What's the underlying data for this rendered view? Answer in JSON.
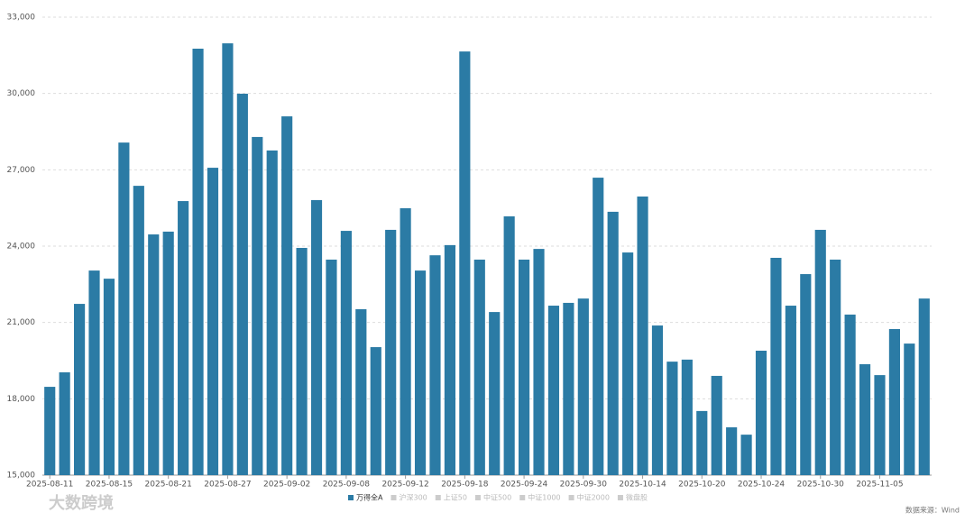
{
  "chart_data": {
    "type": "bar",
    "categories": [
      "2025-08-11",
      null,
      null,
      null,
      "2025-08-15",
      null,
      null,
      null,
      "2025-08-21",
      null,
      null,
      null,
      "2025-08-27",
      null,
      null,
      null,
      "2025-09-02",
      null,
      null,
      null,
      "2025-09-08",
      null,
      null,
      null,
      "2025-09-12",
      null,
      null,
      null,
      "2025-09-18",
      null,
      null,
      null,
      "2025-09-24",
      null,
      null,
      null,
      "2025-09-30",
      null,
      null,
      null,
      "2025-10-14",
      null,
      null,
      null,
      "2025-10-20",
      null,
      null,
      null,
      "2025-10-24",
      null,
      null,
      null,
      "2025-10-30",
      null,
      null,
      null,
      "2025-11-05",
      null,
      null,
      null
    ],
    "series": [
      {
        "name": "万得全A",
        "color": "#2b7ba5",
        "values": [
          18470,
          19040,
          21730,
          23040,
          22720,
          28070,
          26370,
          24460,
          24570,
          25770,
          31760,
          27080,
          31970,
          29990,
          28290,
          27760,
          29100,
          23930,
          25810,
          23470,
          24600,
          21520,
          20030,
          24640,
          25490,
          23040,
          23640,
          24040,
          31650,
          23470,
          21410,
          25170,
          23470,
          23890,
          21660,
          21770,
          21940,
          26690,
          25350,
          23750,
          25950,
          20880,
          19460,
          19540,
          17520,
          18900,
          16880,
          16590,
          19890,
          23540,
          21660,
          22900,
          24640,
          23470,
          21310,
          19360,
          18930,
          20740,
          20170,
          21940
        ]
      }
    ],
    "hidden_series": [
      "沪深300",
      "上证50",
      "中证500",
      "中证1000",
      "中证2000",
      "微盘股"
    ],
    "hidden_color": "#cccccc",
    "ylim": [
      15000,
      33000
    ],
    "yticks": [
      {
        "value": 15000,
        "label": "15,000"
      },
      {
        "value": 18000,
        "label": "18,000"
      },
      {
        "value": 21000,
        "label": "21,000"
      },
      {
        "value": 24000,
        "label": "24,000"
      },
      {
        "value": 27000,
        "label": "27,000"
      },
      {
        "value": 30000,
        "label": "30,000"
      },
      {
        "value": 33000,
        "label": "33,000"
      }
    ],
    "grid": true,
    "source": "数据来源：Wind",
    "watermark": "大数跨境"
  }
}
